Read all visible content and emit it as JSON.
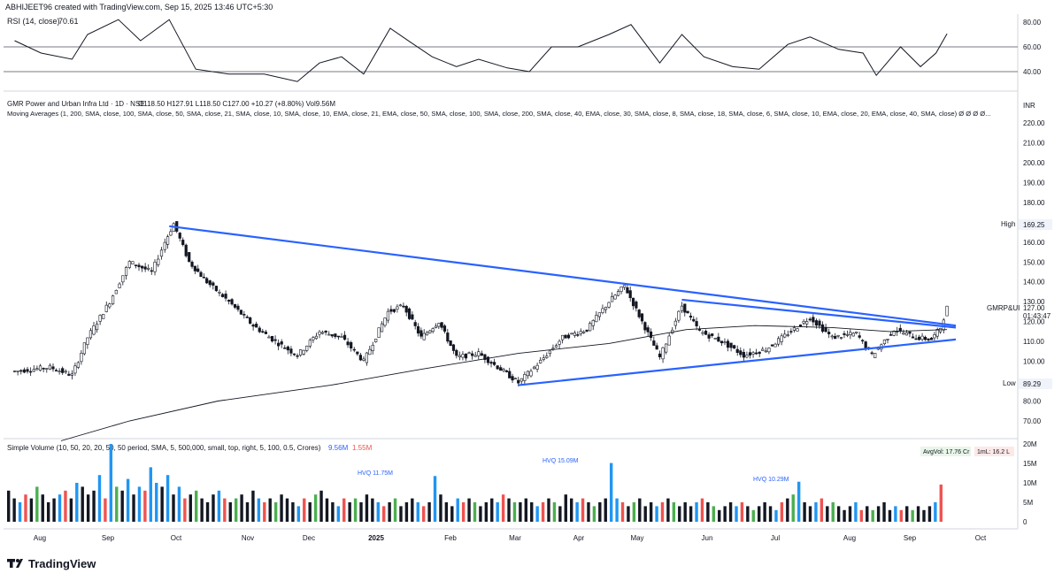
{
  "header": {
    "attribution": "ABHIJEET96 created with TradingView.com, Sep 15, 2025 13:46 UTC+5:30"
  },
  "rsi": {
    "label": "RSI (14, close)",
    "value": "70.61",
    "ticks": [
      "80.00",
      "60.00",
      "40.00"
    ]
  },
  "main": {
    "title": "GMR Power and Urban Infra Ltd · 1D · NSE",
    "ohlc": "O118.50  H127.91  L118.50  C127.00  +10.27 (+8.80%)  Vol9.56M",
    "ma_label": "Moving Averages (1, 200, SMA, close, 100, SMA, close, 50, SMA, close, 21, SMA, close, 10, SMA, close, 10, EMA, close, 21, EMA, close, 50, SMA, close, 100, SMA, close, 200, SMA, close, 40, EMA, close, 30, SMA, close, 8, SMA, close, 18, SMA, close, 6, SMA, close, 10, EMA, close, 20, EMA, close, 40, SMA, close)  Ø Ø Ø Ø...",
    "currency": "INR",
    "price_ticks": [
      "220.00",
      "210.00",
      "200.00",
      "190.00",
      "180.00",
      "170.00",
      "160.00",
      "150.00",
      "140.00",
      "130.00",
      "120.00",
      "110.00",
      "100.00",
      "90.00",
      "80.00",
      "70.00"
    ],
    "high_label": "High",
    "high_value": "169.25",
    "low_label": "Low",
    "low_value": "89.29",
    "symbol_tag": "GMRP&UI",
    "last_price": "127.00",
    "countdown": "01:43:47"
  },
  "volume": {
    "label": "Simple Volume (10, 50, 20, 20, 50, 50 period, SMA, 5, 500,000, small, top, right, 5, 100, 0.5, Crores)",
    "val1": "9.56M",
    "val2": "1.55M",
    "avg_badge": "AvgVol: 17.76 Cr",
    "ml_badge": "1mL: 16.2 L",
    "ticks": [
      "20M",
      "15M",
      "10M",
      "5M",
      "0"
    ],
    "hvq": [
      "HVQ 11.75M",
      "HVQ 15.09M",
      "HVQ 10.29M"
    ]
  },
  "time_axis": [
    "Aug",
    "Sep",
    "Oct",
    "Nov",
    "Dec",
    "2025",
    "Feb",
    "Mar",
    "Apr",
    "May",
    "Jun",
    "Jul",
    "Aug",
    "Sep",
    "Oct"
  ],
  "brand": "TradingView",
  "colors": {
    "up": "#131722",
    "down": "#131722",
    "trendline": "#2962ff",
    "ma": "#131722",
    "vol_blue": "#2196f3",
    "vol_red": "#ef5350",
    "vol_green": "#4caf50",
    "vol_black": "#131722",
    "vol_orange": "#ff9800"
  },
  "chart_data": {
    "type": "line",
    "title": "GMR Power and Urban Infra Ltd · 1D · NSE",
    "ylim": [
      65,
      225
    ],
    "price_path": [
      [
        "2024-07-20",
        95
      ],
      [
        "2024-08-05",
        97
      ],
      [
        "2024-08-15",
        93
      ],
      [
        "2024-08-22",
        112
      ],
      [
        "2024-09-01",
        130
      ],
      [
        "2024-09-10",
        150
      ],
      [
        "2024-09-20",
        145
      ],
      [
        "2024-09-26",
        160
      ],
      [
        "2024-09-30",
        169.25
      ],
      [
        "2024-10-07",
        150
      ],
      [
        "2024-10-15",
        140
      ],
      [
        "2024-10-25",
        130
      ],
      [
        "2024-11-05",
        118
      ],
      [
        "2024-11-15",
        110
      ],
      [
        "2024-11-25",
        103
      ],
      [
        "2024-12-05",
        115
      ],
      [
        "2024-12-15",
        112
      ],
      [
        "2024-12-25",
        100
      ],
      [
        "2025-01-05",
        125
      ],
      [
        "2025-01-12",
        128
      ],
      [
        "2025-01-20",
        112
      ],
      [
        "2025-01-28",
        120
      ],
      [
        "2025-02-05",
        102
      ],
      [
        "2025-02-15",
        104
      ],
      [
        "2025-02-25",
        96
      ],
      [
        "2025-03-05",
        89.29
      ],
      [
        "2025-03-15",
        100
      ],
      [
        "2025-03-25",
        112
      ],
      [
        "2025-04-05",
        116
      ],
      [
        "2025-04-15",
        130
      ],
      [
        "2025-04-22",
        138
      ],
      [
        "2025-04-30",
        120
      ],
      [
        "2025-05-08",
        102
      ],
      [
        "2025-05-18",
        128
      ],
      [
        "2025-05-26",
        115
      ],
      [
        "2025-06-05",
        110
      ],
      [
        "2025-06-15",
        103
      ],
      [
        "2025-06-25",
        106
      ],
      [
        "2025-07-05",
        114
      ],
      [
        "2025-07-15",
        122
      ],
      [
        "2025-07-25",
        112
      ],
      [
        "2025-08-05",
        114
      ],
      [
        "2025-08-12",
        103
      ],
      [
        "2025-08-22",
        116
      ],
      [
        "2025-09-01",
        112
      ],
      [
        "2025-09-08",
        111
      ],
      [
        "2025-09-12",
        117
      ],
      [
        "2025-09-15",
        127
      ]
    ],
    "trendlines": [
      {
        "from": [
          "2024-09-28",
          168
        ],
        "to": [
          "2025-09-19",
          118
        ]
      },
      {
        "from": [
          "2025-05-18",
          131
        ],
        "to": [
          "2025-09-19",
          117
        ]
      },
      {
        "from": [
          "2025-03-05",
          88
        ],
        "to": [
          "2025-09-19",
          111
        ]
      }
    ],
    "ma200": [
      [
        "2024-08-10",
        60
      ],
      [
        "2024-09-10",
        70
      ],
      [
        "2024-10-20",
        80
      ],
      [
        "2024-12-10",
        88
      ],
      [
        "2025-01-20",
        96
      ],
      [
        "2025-03-05",
        104
      ],
      [
        "2025-04-15",
        109
      ],
      [
        "2025-05-20",
        116
      ],
      [
        "2025-06-20",
        118
      ],
      [
        "2025-07-25",
        117
      ],
      [
        "2025-08-20",
        115
      ],
      [
        "2025-09-15",
        116
      ]
    ],
    "rsi": [
      [
        "2024-07-20",
        65
      ],
      [
        "2024-08-01",
        55
      ],
      [
        "2024-08-15",
        50
      ],
      [
        "2024-08-22",
        70
      ],
      [
        "2024-09-05",
        82
      ],
      [
        "2024-09-15",
        65
      ],
      [
        "2024-09-28",
        82
      ],
      [
        "2024-10-10",
        42
      ],
      [
        "2024-10-25",
        38
      ],
      [
        "2024-11-10",
        38
      ],
      [
        "2024-11-25",
        32
      ],
      [
        "2024-12-05",
        47
      ],
      [
        "2024-12-15",
        52
      ],
      [
        "2024-12-25",
        38
      ],
      [
        "2025-01-06",
        75
      ],
      [
        "2025-01-15",
        64
      ],
      [
        "2025-01-25",
        52
      ],
      [
        "2025-02-05",
        44
      ],
      [
        "2025-02-15",
        50
      ],
      [
        "2025-02-28",
        43
      ],
      [
        "2025-03-10",
        40
      ],
      [
        "2025-03-20",
        60
      ],
      [
        "2025-04-01",
        60
      ],
      [
        "2025-04-15",
        70
      ],
      [
        "2025-04-25",
        78
      ],
      [
        "2025-05-08",
        47
      ],
      [
        "2025-05-18",
        70
      ],
      [
        "2025-05-28",
        52
      ],
      [
        "2025-06-10",
        44
      ],
      [
        "2025-06-22",
        42
      ],
      [
        "2025-07-05",
        62
      ],
      [
        "2025-07-15",
        68
      ],
      [
        "2025-07-28",
        58
      ],
      [
        "2025-08-08",
        55
      ],
      [
        "2025-08-14",
        37
      ],
      [
        "2025-08-25",
        60
      ],
      [
        "2025-09-03",
        44
      ],
      [
        "2025-09-10",
        55
      ],
      [
        "2025-09-15",
        70.61
      ]
    ],
    "volume_bars_M": [
      8,
      6,
      5,
      7,
      6,
      9,
      7,
      5,
      6,
      7,
      8,
      6,
      10,
      9,
      7,
      8,
      12,
      6,
      20,
      9,
      8,
      11,
      7,
      9,
      8,
      14,
      10,
      9,
      12,
      7,
      9,
      6,
      7,
      8,
      6,
      5,
      7,
      8,
      6,
      5,
      6,
      7,
      5,
      8,
      6,
      5,
      6,
      5,
      7,
      6,
      5,
      4,
      6,
      5,
      7,
      8,
      6,
      5,
      4,
      6,
      5,
      6,
      5,
      7,
      6,
      5,
      4,
      5,
      6,
      4,
      5,
      6,
      5,
      4,
      5,
      11.75,
      7,
      5,
      4,
      6,
      5,
      6,
      5,
      4,
      5,
      6,
      5,
      7,
      6,
      5,
      5,
      6,
      5,
      4,
      5,
      6,
      5,
      4,
      7,
      6,
      5,
      6,
      5,
      4,
      5,
      6,
      15.09,
      6,
      5,
      4,
      5,
      6,
      4,
      5,
      4,
      5,
      6,
      5,
      4,
      5,
      4,
      5,
      6,
      5,
      4,
      3,
      4,
      5,
      4,
      5,
      4,
      3,
      4,
      5,
      4,
      3,
      5,
      6,
      7,
      10.29,
      5,
      4,
      5,
      6,
      4,
      5,
      4,
      3,
      4,
      5,
      3,
      4,
      3,
      4,
      5,
      3,
      4,
      3,
      4,
      3,
      4,
      3,
      4,
      5,
      9.56
    ]
  }
}
